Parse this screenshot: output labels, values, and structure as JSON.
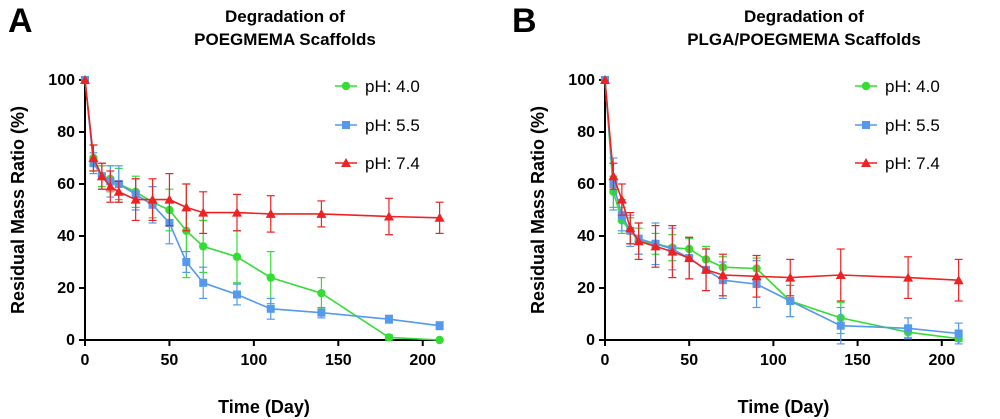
{
  "chart_data": [
    {
      "type": "line",
      "panel_letter": "A",
      "title_lines": [
        "Degradation of",
        "POEGMEMA Scaffolds"
      ],
      "xlabel": "Time (Day)",
      "ylabel": "Residual Mass Ratio (%)",
      "xlim": [
        0,
        212
      ],
      "ylim": [
        0,
        100
      ],
      "xticks": [
        0,
        50,
        100,
        150,
        200
      ],
      "yticks": [
        0,
        20,
        40,
        60,
        80,
        100
      ],
      "grid": false,
      "legend_position": "top-right",
      "series": [
        {
          "name": "pH: 4.0",
          "color": "#33dd33",
          "marker": "circle",
          "x": [
            0,
            5,
            10,
            15,
            20,
            30,
            40,
            50,
            60,
            70,
            90,
            110,
            140,
            180,
            210
          ],
          "y": [
            100,
            70,
            63,
            62,
            60,
            57,
            53,
            50,
            42,
            36,
            32,
            24,
            18,
            1,
            0
          ],
          "err": [
            0,
            5,
            4,
            5,
            6,
            6,
            6,
            8,
            18,
            10,
            10,
            10,
            6,
            1,
            0
          ]
        },
        {
          "name": "pH: 5.5",
          "color": "#5599ee",
          "marker": "square",
          "x": [
            0,
            5,
            10,
            15,
            20,
            30,
            40,
            50,
            60,
            70,
            90,
            110,
            140,
            180,
            210
          ],
          "y": [
            100,
            68,
            63,
            61,
            60,
            56,
            52,
            45,
            30,
            22,
            17.5,
            12,
            10.5,
            8,
            5.5
          ],
          "err": [
            0,
            4,
            5,
            6,
            7,
            6,
            7,
            8,
            4,
            6,
            4,
            4,
            2,
            1.5,
            1.5
          ]
        },
        {
          "name": "pH: 7.4",
          "color": "#ee2222",
          "marker": "triangle",
          "x": [
            0,
            5,
            10,
            15,
            20,
            30,
            40,
            50,
            60,
            70,
            90,
            110,
            140,
            180,
            210
          ],
          "y": [
            100,
            70,
            63,
            59,
            57,
            54,
            54,
            54,
            51,
            49,
            49,
            48.5,
            48.5,
            47.5,
            47
          ],
          "err": [
            0,
            5,
            5,
            6,
            4,
            8,
            8,
            10,
            9,
            8,
            7,
            7,
            5,
            7,
            6
          ]
        }
      ]
    },
    {
      "type": "line",
      "panel_letter": "B",
      "title_lines": [
        "Degradation of",
        "PLGA/POEGMEMA Scaffolds"
      ],
      "xlabel": "Time (Day)",
      "ylabel": "Residual Mass Ratio (%)",
      "xlim": [
        0,
        212
      ],
      "ylim": [
        0,
        100
      ],
      "xticks": [
        0,
        50,
        100,
        150,
        200
      ],
      "yticks": [
        0,
        20,
        40,
        60,
        80,
        100
      ],
      "grid": false,
      "legend_position": "top-right",
      "series": [
        {
          "name": "pH: 4.0",
          "color": "#33dd33",
          "marker": "circle",
          "x": [
            0,
            5,
            10,
            15,
            20,
            30,
            40,
            50,
            60,
            70,
            90,
            110,
            140,
            180,
            210
          ],
          "y": [
            100,
            57,
            46,
            42,
            38,
            37,
            35.5,
            35,
            31,
            28,
            27.5,
            15,
            8.5,
            3,
            0.5
          ],
          "err": [
            0,
            6,
            5,
            5,
            5,
            4,
            5,
            4,
            5,
            4,
            4,
            6,
            6,
            2,
            1
          ]
        },
        {
          "name": "pH: 5.5",
          "color": "#5599ee",
          "marker": "square",
          "x": [
            0,
            5,
            10,
            15,
            20,
            30,
            40,
            50,
            60,
            70,
            90,
            110,
            140,
            180,
            210
          ],
          "y": [
            100,
            60,
            48,
            42,
            39,
            37,
            35,
            31.5,
            27,
            23,
            21.5,
            15,
            5.5,
            4.5,
            2.5
          ],
          "err": [
            0,
            10,
            6,
            6,
            6,
            8,
            8,
            8,
            8,
            7,
            9,
            6,
            7,
            4,
            4
          ]
        },
        {
          "name": "pH: 7.4",
          "color": "#ee2222",
          "marker": "triangle",
          "x": [
            0,
            5,
            10,
            15,
            20,
            30,
            40,
            50,
            60,
            70,
            90,
            110,
            140,
            180,
            210
          ],
          "y": [
            100,
            63,
            54,
            43,
            38,
            36,
            34,
            31.5,
            27,
            25,
            24.5,
            24,
            25,
            24,
            23
          ],
          "err": [
            0,
            5,
            6,
            6,
            7,
            8,
            10,
            8,
            8,
            8,
            8,
            7,
            10,
            8,
            8
          ]
        }
      ]
    }
  ]
}
